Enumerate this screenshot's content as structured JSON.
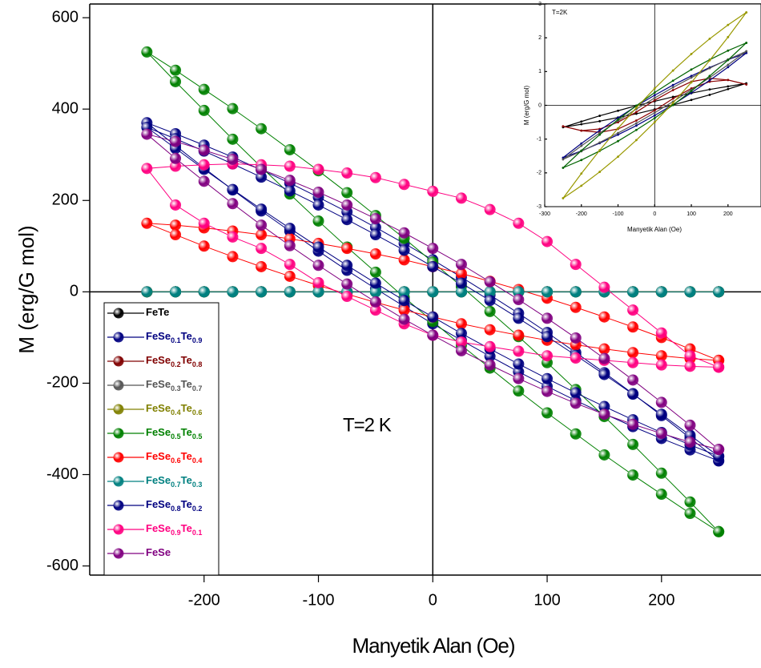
{
  "chart_data": [
    {
      "type": "line",
      "xlabel": "Manyetik Alan (Oe)",
      "ylabel": "M (erg/G mol)",
      "annotation": "T=2 K",
      "xlim": [
        -300,
        287
      ],
      "xticks": [
        -200,
        -100,
        0,
        100,
        200
      ],
      "ylim": [
        -620,
        630
      ],
      "yticks": [
        -600,
        -400,
        -200,
        0,
        200,
        400,
        600
      ],
      "grid": false,
      "legend": "lower left",
      "x": [
        250,
        225,
        200,
        175,
        150,
        125,
        100,
        75,
        50,
        25,
        0,
        -25,
        -50,
        -75,
        -100,
        -125,
        -150,
        -175,
        -200,
        -225,
        -250,
        -225,
        -200,
        -175,
        -150,
        -125,
        -100,
        -75,
        -50,
        -25,
        0,
        25,
        50,
        75,
        100,
        125,
        150,
        175,
        200,
        225,
        250
      ],
      "series": [
        {
          "name": "FeTe",
          "color": "#000000",
          "values": [
            0,
            0,
            0,
            0,
            0,
            0,
            0,
            0,
            0,
            0,
            0,
            0,
            0,
            0,
            0,
            0,
            0,
            0,
            0,
            0,
            0,
            0,
            0,
            0,
            0,
            0,
            0,
            0,
            0,
            0,
            0,
            0,
            0,
            0,
            0,
            0,
            0,
            0,
            0,
            0,
            0
          ]
        },
        {
          "name": "FeSe0.1Te0.9",
          "color": "#000080",
          "values": [
            -370,
            -320,
            -271,
            -223,
            -177,
            -133,
            -89,
            -47,
            -7,
            32,
            70,
            106,
            141,
            175,
            207,
            238,
            267,
            295,
            321,
            346,
            370,
            320,
            271,
            223,
            177,
            133,
            89,
            47,
            7,
            -32,
            -70,
            -106,
            -141,
            -175,
            -207,
            -238,
            -267,
            -295,
            -321,
            -346,
            -370
          ]
        },
        {
          "name": "FeSe0.2Te0.8",
          "color": "#800000",
          "values": [
            0,
            0,
            0,
            0,
            0,
            0,
            0,
            0,
            0,
            0,
            0,
            0,
            0,
            0,
            0,
            0,
            0,
            0,
            0,
            0,
            0,
            0,
            0,
            0,
            0,
            0,
            0,
            0,
            0,
            0,
            0,
            0,
            0,
            0,
            0,
            0,
            0,
            0,
            0,
            0,
            0
          ]
        },
        {
          "name": "FeSe0.3Te0.7",
          "color": "#555555",
          "values": [
            0,
            0,
            0,
            0,
            0,
            0,
            0,
            0,
            0,
            0,
            0,
            0,
            0,
            0,
            0,
            0,
            0,
            0,
            0,
            0,
            0,
            0,
            0,
            0,
            0,
            0,
            0,
            0,
            0,
            0,
            0,
            0,
            0,
            0,
            0,
            0,
            0,
            0,
            0,
            0,
            0
          ]
        },
        {
          "name": "FeSe0.4Te0.6",
          "color": "#808000",
          "values": [
            0,
            0,
            0,
            0,
            0,
            0,
            0,
            0,
            0,
            0,
            0,
            0,
            0,
            0,
            0,
            0,
            0,
            0,
            0,
            0,
            0,
            0,
            0,
            0,
            0,
            0,
            0,
            0,
            0,
            0,
            0,
            0,
            0,
            0,
            0,
            0,
            0,
            0,
            0,
            0,
            0
          ]
        },
        {
          "name": "FeSe0.5Te0.5",
          "color": "#008000",
          "values": [
            -525,
            -460,
            -397,
            -334,
            -273,
            -214,
            -155,
            -98,
            -43,
            12,
            65,
            117,
            167,
            217,
            265,
            311,
            357,
            401,
            443,
            485,
            525,
            460,
            397,
            334,
            273,
            214,
            155,
            98,
            43,
            -12,
            -65,
            -117,
            -167,
            -217,
            -265,
            -311,
            -357,
            -401,
            -443,
            -485,
            -525
          ]
        },
        {
          "name": "FeSe0.6Te0.4",
          "color": "#ff0000",
          "values": [
            -150,
            -125,
            -100,
            -77,
            -55,
            -34,
            -14,
            5,
            23,
            40,
            55,
            70,
            83,
            95,
            106,
            116,
            125,
            133,
            140,
            146,
            150,
            125,
            100,
            77,
            55,
            34,
            14,
            -5,
            -23,
            -40,
            -55,
            -70,
            -83,
            -95,
            -106,
            -116,
            -125,
            -133,
            -140,
            -146,
            -150
          ]
        },
        {
          "name": "FeSe0.7Te0.3",
          "color": "#008080",
          "values": [
            0,
            0,
            0,
            0,
            0,
            0,
            0,
            0,
            0,
            0,
            0,
            0,
            0,
            0,
            0,
            0,
            0,
            0,
            0,
            0,
            0,
            0,
            0,
            0,
            0,
            0,
            0,
            0,
            0,
            0,
            0,
            0,
            0,
            0,
            0,
            0,
            0,
            0,
            0,
            0,
            0
          ]
        },
        {
          "name": "FeSe0.8Te0.2",
          "color": "#000080",
          "values": [
            -360,
            -314,
            -268,
            -224,
            -181,
            -139,
            -98,
            -58,
            -19,
            19,
            55,
            91,
            125,
            158,
            190,
            221,
            251,
            280,
            308,
            335,
            360,
            314,
            268,
            224,
            181,
            139,
            98,
            58,
            19,
            -19,
            -55,
            -91,
            -125,
            -158,
            -190,
            -221,
            -251,
            -280,
            -308,
            -335,
            -360
          ]
        },
        {
          "name": "FeSe0.9Te0.1",
          "color": "#ff0080",
          "values": [
            -165,
            -140,
            -90,
            -40,
            10,
            60,
            110,
            150,
            180,
            205,
            220,
            235,
            250,
            260,
            268,
            275,
            278,
            280,
            278,
            275,
            270,
            190,
            150,
            120,
            95,
            60,
            20,
            -10,
            -40,
            -70,
            -95,
            -110,
            -120,
            -130,
            -140,
            -145,
            -150,
            -155,
            -160,
            -163,
            -165
          ]
        },
        {
          "name": "FeSe",
          "color": "#800080",
          "values": [
            -345,
            -292,
            -242,
            -193,
            -146,
            -101,
            -58,
            -17,
            22,
            60,
            95,
            129,
            160,
            190,
            218,
            244,
            268,
            290,
            310,
            329,
            345,
            292,
            242,
            193,
            146,
            101,
            58,
            17,
            -22,
            -60,
            -95,
            -129,
            -160,
            -190,
            -218,
            -244,
            -268,
            -290,
            -310,
            -329,
            -345
          ]
        }
      ]
    },
    {
      "type": "line",
      "xlabel": "Manyetik Alan (Oe)",
      "ylabel": "M (erg/G mol)",
      "annotation": "T=2K",
      "xlim": [
        -300,
        290
      ],
      "xticks": [
        -300,
        -200,
        -100,
        0,
        100,
        200
      ],
      "ylim": [
        -3,
        3
      ],
      "yticks": [
        -3,
        -2,
        -1,
        0,
        1,
        2,
        3
      ],
      "x": [
        250,
        200,
        150,
        100,
        50,
        0,
        -50,
        -100,
        -150,
        -200,
        -250,
        -200,
        -150,
        -100,
        -50,
        0,
        50,
        100,
        150,
        200,
        250
      ],
      "series": [
        {
          "color": "#000000",
          "values": [
            0.65,
            0.56,
            0.47,
            0.36,
            0.25,
            0.12,
            -0.01,
            -0.16,
            -0.31,
            -0.48,
            -0.65,
            -0.56,
            -0.47,
            -0.36,
            -0.25,
            -0.12,
            0.01,
            0.16,
            0.31,
            0.48,
            0.65
          ]
        },
        {
          "color": "#8b0000",
          "values": [
            0.62,
            0.75,
            0.8,
            0.7,
            0.45,
            0.15,
            -0.2,
            -0.5,
            -0.7,
            -0.75,
            -0.62,
            -0.75,
            -0.8,
            -0.7,
            -0.45,
            -0.15,
            0.2,
            0.5,
            0.7,
            0.75,
            0.62
          ]
        },
        {
          "color": "#000080",
          "values": [
            1.55,
            1.35,
            1.12,
            0.87,
            0.6,
            0.3,
            -0.02,
            -0.37,
            -0.74,
            -1.13,
            -1.55,
            -1.35,
            -1.12,
            -0.87,
            -0.6,
            -0.3,
            0.02,
            0.37,
            0.74,
            1.13,
            1.55
          ]
        },
        {
          "color": "#555555",
          "values": [
            1.6,
            1.36,
            1.1,
            0.82,
            0.53,
            0.22,
            -0.11,
            -0.46,
            -0.82,
            -1.2,
            -1.6,
            -1.36,
            -1.1,
            -0.82,
            -0.53,
            -0.22,
            0.11,
            0.46,
            0.82,
            1.2,
            1.6
          ]
        },
        {
          "color": "#006400",
          "values": [
            1.85,
            1.62,
            1.35,
            1.06,
            0.73,
            0.38,
            -0.01,
            -0.42,
            -0.87,
            -1.34,
            -1.85,
            -1.62,
            -1.35,
            -1.06,
            -0.73,
            -0.38,
            0.01,
            0.42,
            0.87,
            1.34,
            1.85
          ]
        },
        {
          "color": "#999900",
          "values": [
            2.75,
            2.38,
            1.97,
            1.52,
            1.03,
            0.5,
            -0.07,
            -0.68,
            -1.33,
            -2.02,
            -2.75,
            -2.38,
            -1.97,
            -1.52,
            -1.03,
            -0.5,
            0.07,
            0.68,
            1.33,
            2.02,
            2.75
          ]
        }
      ]
    }
  ]
}
